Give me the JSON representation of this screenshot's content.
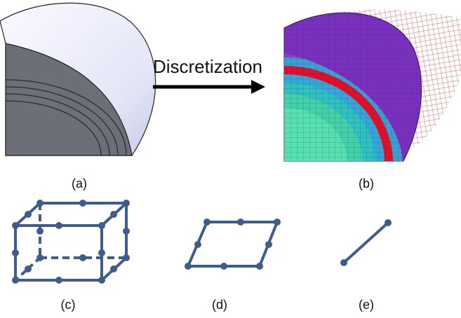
{
  "title": "Discretization",
  "labels": [
    "(a)",
    "(b)",
    "(c)",
    "(d)",
    "(e)"
  ]
}
